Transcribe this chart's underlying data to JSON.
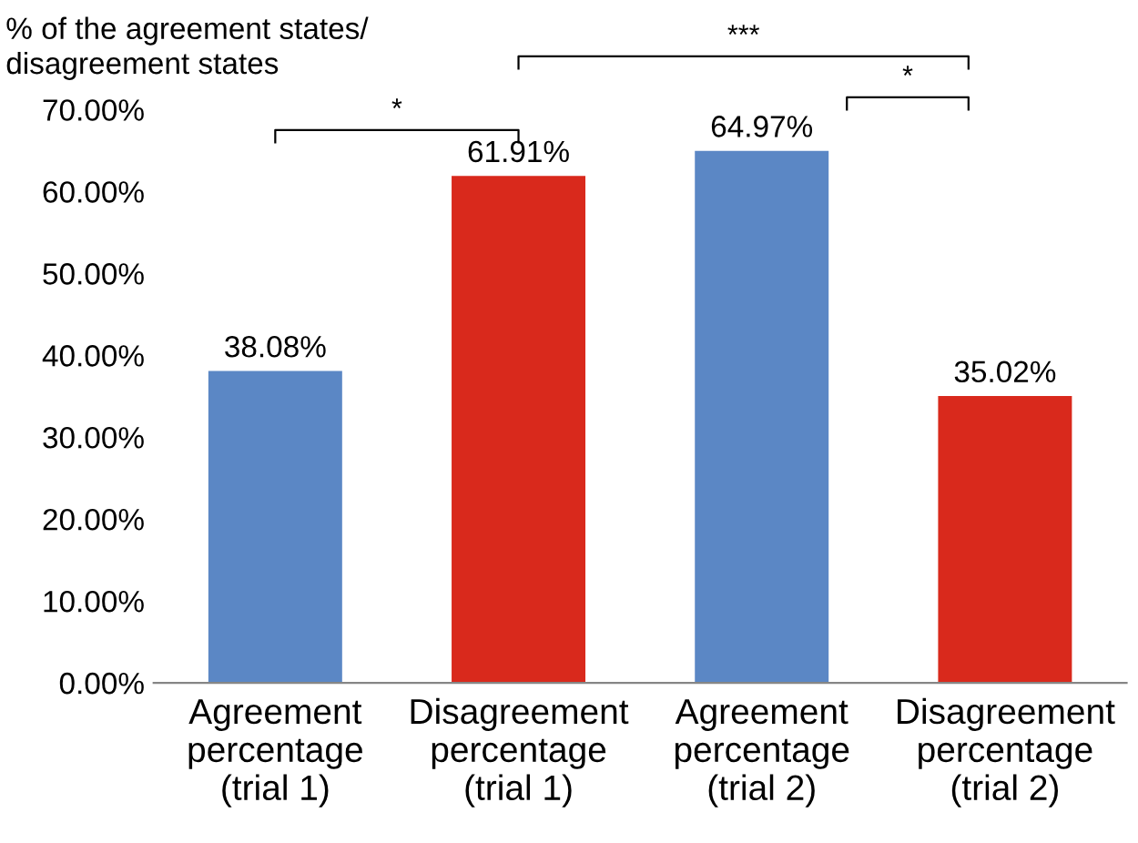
{
  "chart_data": {
    "type": "bar",
    "ylabel": "% of the agreement states/\ndisagreement states",
    "categories": [
      "Agreement\npercentage\n(trial 1)",
      "Disagreement\npercentage\n(trial 1)",
      "Agreement\npercentage\n(trial 2)",
      "Disagreement\npercentage\n(trial 2)"
    ],
    "values": [
      38.08,
      61.91,
      64.97,
      35.02
    ],
    "colors": [
      "#5b87c5",
      "#d9291c",
      "#5b87c5",
      "#d9291c"
    ],
    "value_labels": [
      "38.08%",
      "61.91%",
      "64.97%",
      "35.02%"
    ],
    "ylim": [
      0,
      70
    ],
    "yticks": [
      {
        "value": 0,
        "label": "0.00%"
      },
      {
        "value": 10,
        "label": "10.00%"
      },
      {
        "value": 20,
        "label": "20.00%"
      },
      {
        "value": 30,
        "label": "30.00%"
      },
      {
        "value": 40,
        "label": "40.00%"
      },
      {
        "value": 50,
        "label": "50.00%"
      },
      {
        "value": 60,
        "label": "60.00%"
      },
      {
        "value": 70,
        "label": "70.00%"
      }
    ],
    "annotations": [
      "*",
      "***",
      "*"
    ],
    "grid": false,
    "legend": false
  }
}
